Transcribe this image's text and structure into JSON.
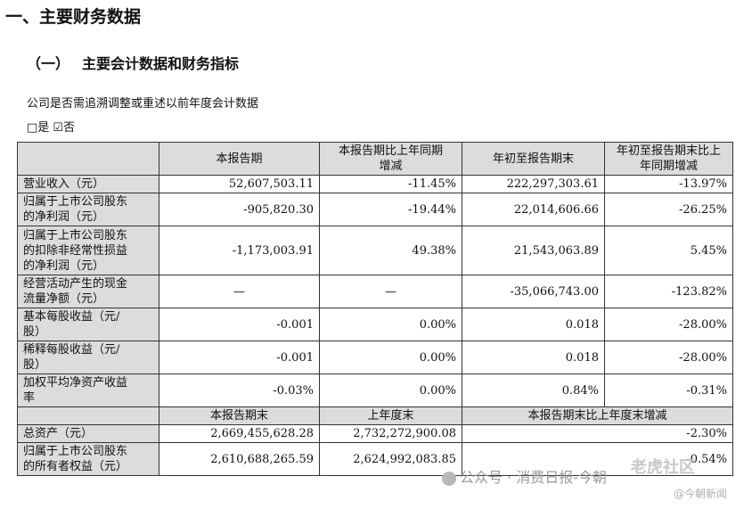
{
  "heading1": "一、主要财务数据",
  "heading2": {
    "index": "（一）",
    "title": "主要会计数据和财务指标"
  },
  "note": "公司是否需追溯调整或重述以前年度会计数据",
  "options": "□是 ☑否",
  "table": {
    "headers": [
      "",
      "本报告期",
      "本报告期比上年同期\n增减",
      "年初至报告期末",
      "年初至报告期末比上\n年同期增减"
    ],
    "rows": [
      [
        "营业收入（元）",
        "52,607,503.11",
        "-11.45%",
        "222,297,303.61",
        "-13.97%"
      ],
      [
        "归属于上市公司股东\n的净利润（元）",
        "-905,820.30",
        "-19.44%",
        "22,014,606.66",
        "-26.25%"
      ],
      [
        "归属于上市公司股东\n的扣除非经常性损益\n的净利润（元）",
        "-1,173,003.91",
        "49.38%",
        "21,543,063.89",
        "5.45%"
      ],
      [
        "经营活动产生的现金\n流量净额（元）",
        "—",
        "—",
        "-35,066,743.00",
        "-123.82%"
      ],
      [
        "基本每股收益（元/\n股）",
        "-0.001",
        "0.00%",
        "0.018",
        "-28.00%"
      ],
      [
        "稀释每股收益（元/\n股）",
        "-0.001",
        "0.00%",
        "0.018",
        "-28.00%"
      ],
      [
        "加权平均净资产收益\n率",
        "-0.03%",
        "0.00%",
        "0.84%",
        "-0.31%"
      ]
    ],
    "headers2": [
      "",
      "本报告期末",
      "上年度末",
      "本报告期末比上年度末增减"
    ],
    "rows2": [
      [
        "总资产（元）",
        "2,669,455,628.28",
        "2,732,272,900.08",
        "-2.30%"
      ],
      [
        "归属于上市公司股东\n的所有者权益（元）",
        "2,610,688,265.59",
        "2,624,992,083.85",
        "-0.54%"
      ]
    ]
  },
  "watermark": {
    "text": "公众号 · 消费日报-今朝",
    "brand": "老虎社区",
    "handle": "@今朝新闻"
  }
}
